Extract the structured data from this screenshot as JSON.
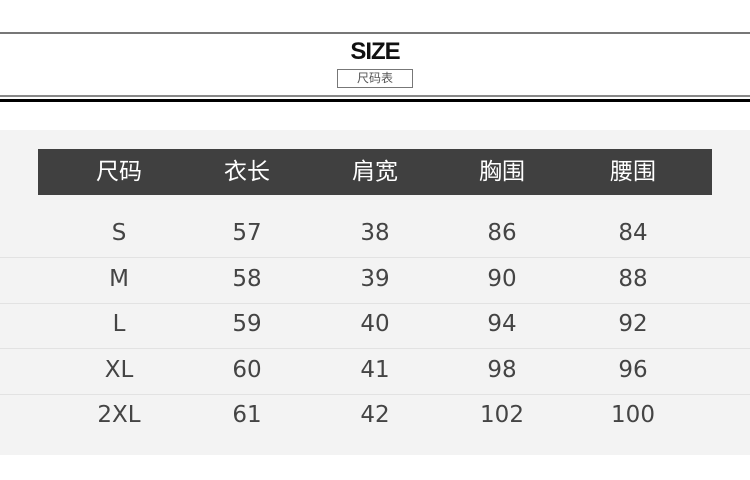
{
  "header": {
    "title": "SIZE",
    "subtitle": "尺码表"
  },
  "table": {
    "columns": [
      "尺码",
      "衣长",
      "肩宽",
      "胸围",
      "腰围"
    ],
    "rows": [
      [
        "S",
        "57",
        "38",
        "86",
        "84"
      ],
      [
        "M",
        "58",
        "39",
        "90",
        "88"
      ],
      [
        "L",
        "59",
        "40",
        "94",
        "92"
      ],
      [
        "XL",
        "60",
        "41",
        "98",
        "96"
      ],
      [
        "2XL",
        "61",
        "42",
        "102",
        "100"
      ]
    ]
  }
}
